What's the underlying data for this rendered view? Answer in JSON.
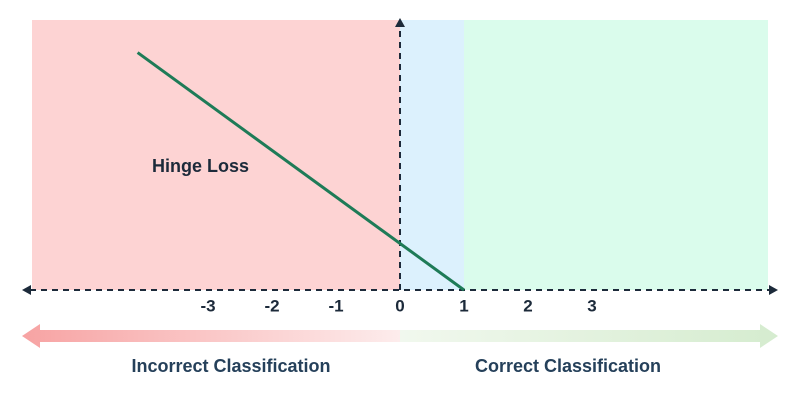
{
  "chart_data": {
    "type": "line",
    "x": [
      -4.1,
      1
    ],
    "series": [
      {
        "name": "Hinge Loss",
        "color": "#1e7b57",
        "values": [
          5.1,
          0
        ]
      }
    ],
    "xlim": [
      -5.75,
      5.75
    ],
    "ylim": [
      0,
      5.8
    ],
    "xticks": [
      -3,
      -2,
      -1,
      0,
      1,
      2,
      3
    ],
    "regions": [
      {
        "start": -5.75,
        "end": 0,
        "color": "#fdd3d3"
      },
      {
        "start": 0,
        "end": 1,
        "color": "#dcf1fd"
      },
      {
        "start": 1,
        "end": 5.75,
        "color": "#dafcec"
      }
    ],
    "bottom_labels": [
      "Incorrect Classification",
      "Correct Classification"
    ]
  }
}
